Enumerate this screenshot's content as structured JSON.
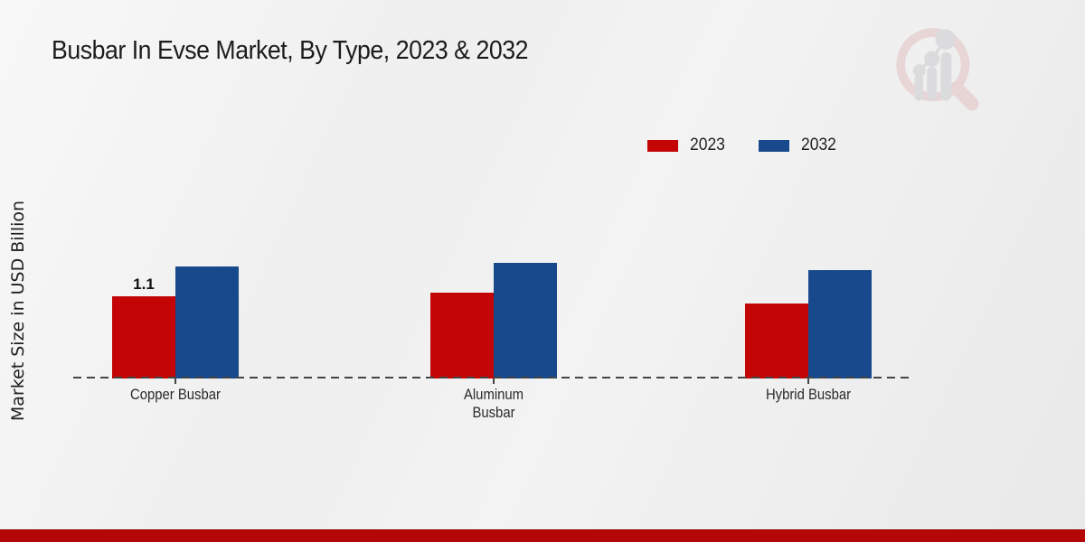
{
  "page": {
    "title": "Busbar In Evse Market, By Type, 2023 & 2032",
    "ylabel": "Market Size in USD Billion"
  },
  "legend": {
    "items": [
      {
        "label": "2023",
        "color": "#c30505"
      },
      {
        "label": "2032",
        "color": "#17498c"
      }
    ]
  },
  "colors": {
    "series_2023": "#c30505",
    "series_2032": "#17498c",
    "footer_stripe": "#b50707",
    "watermark_pink": "#e2bcbc",
    "watermark_gray": "#c9c9cd"
  },
  "chart_data": {
    "type": "bar",
    "title": "Busbar In Evse Market, By Type, 2023 & 2032",
    "categories": [
      "Copper Busbar",
      "Aluminum Busbar",
      "Hybrid Busbar"
    ],
    "series": [
      {
        "name": "2023",
        "color": "#c30505",
        "values": [
          1.1,
          1.15,
          1.0
        ],
        "value_labels": [
          "1.1",
          "",
          ""
        ]
      },
      {
        "name": "2032",
        "color": "#17498c",
        "values": [
          1.5,
          1.55,
          1.45
        ],
        "value_labels": [
          "",
          "",
          ""
        ]
      }
    ],
    "xlabel": "",
    "ylabel": "Market Size in USD Billion",
    "ylim": [
      0,
      2.2
    ],
    "grid": false,
    "legend_position": "top-right",
    "baseline_style": "dashed",
    "units": "USD Billion"
  }
}
